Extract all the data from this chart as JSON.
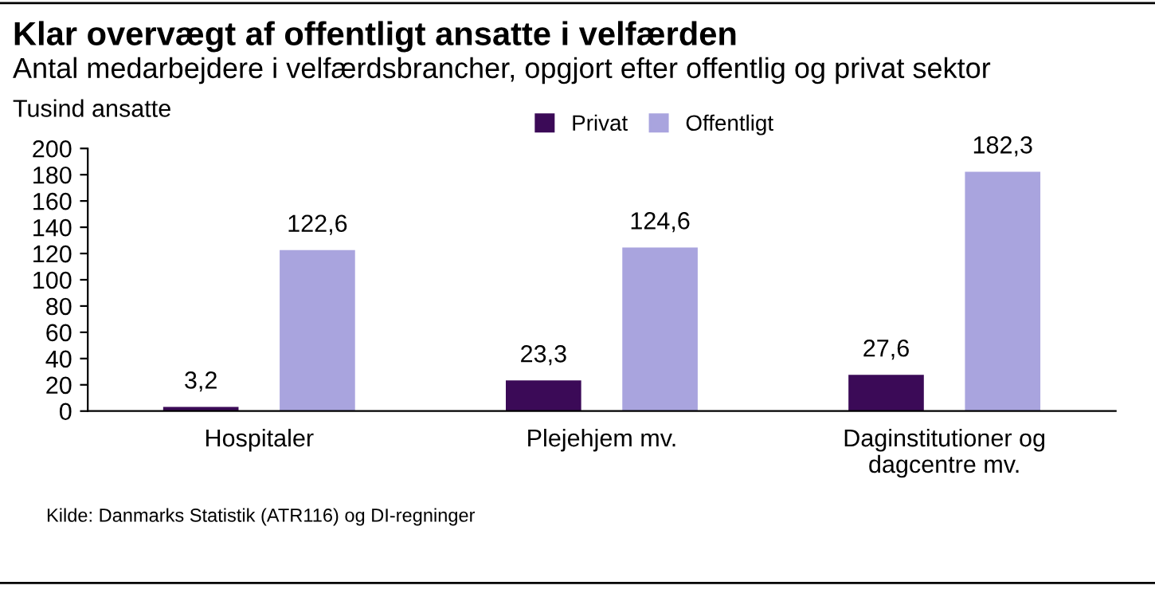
{
  "chart_data": {
    "type": "bar",
    "title": "Klar overvægt af offentligt ansatte i velfærden",
    "subtitle": "Antal medarbejdere i velfærdsbrancher, opgjort efter offentlig og privat sektor",
    "ylabel": "Tusind ansatte",
    "categories": [
      "Hospitaler",
      "Plejehjem mv.",
      "Daginstitutioner og\ndagcentre mv."
    ],
    "series": [
      {
        "name": "Privat",
        "color": "#3b0a57",
        "values": [
          3.2,
          23.3,
          27.6
        ],
        "value_labels": [
          "3,2",
          "23,3",
          "27,6"
        ]
      },
      {
        "name": "Offentligt",
        "color": "#a9a4de",
        "values": [
          122.6,
          124.6,
          182.3
        ],
        "value_labels": [
          "122,6",
          "124,6",
          "182,3"
        ]
      }
    ],
    "ylim": [
      0,
      200
    ],
    "yticks": [
      0,
      20,
      40,
      60,
      80,
      100,
      120,
      140,
      160,
      180,
      200
    ],
    "grid": false,
    "legend": "top right",
    "annotations": [
      "Kilde: Danmarks Statistik (ATR116) og DI-regninger"
    ]
  }
}
